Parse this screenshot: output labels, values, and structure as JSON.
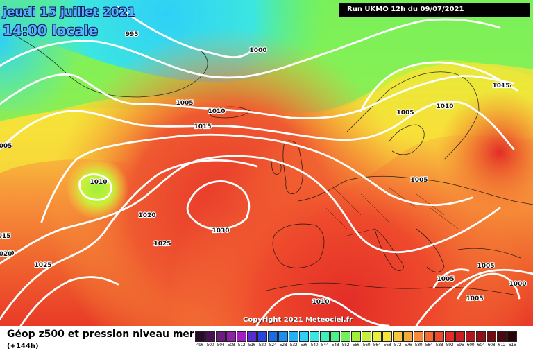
{
  "header": {
    "date_line": "jeudi 15 juillet 2021",
    "time_line": "14:00 locale",
    "run_info": "Run UKMO 12h du 09/07/2021"
  },
  "copyright": "Copyright 2021 Meteociel.fr",
  "footer": {
    "title": "Géop z500 et pression niveau mer",
    "subtitle": "(+144h)"
  },
  "legend": {
    "values": [
      "496",
      "500",
      "504",
      "508",
      "512",
      "516",
      "520",
      "524",
      "528",
      "532",
      "536",
      "540",
      "544",
      "548",
      "552",
      "556",
      "560",
      "564",
      "568",
      "572",
      "576",
      "580",
      "584",
      "588",
      "592",
      "596",
      "600",
      "604",
      "608",
      "612",
      "616"
    ],
    "colors": [
      "#2a0a2a",
      "#4b0f55",
      "#6e1a80",
      "#8f21a8",
      "#a51cc7",
      "#5a2bd1",
      "#2a43e0",
      "#1c6ae6",
      "#1e8df0",
      "#24b0f7",
      "#2fd0f7",
      "#3ce6e0",
      "#3ff0b8",
      "#4ff08a",
      "#73f05a",
      "#9ef03a",
      "#c8f03a",
      "#e8f03a",
      "#f7e43a",
      "#f7c93a",
      "#f7a83a",
      "#f78a3a",
      "#f46a32",
      "#ee4a2c",
      "#e32d27",
      "#cc1e22",
      "#b0161d",
      "#8f1018",
      "#700c14",
      "#4c0810",
      "#2a040a"
    ]
  },
  "isobars": [
    {
      "label": "995"
    },
    {
      "label": "1000"
    },
    {
      "label": "1005"
    },
    {
      "label": "1010"
    },
    {
      "label": "1015"
    },
    {
      "label": "1005"
    },
    {
      "label": "1010"
    },
    {
      "label": "1010"
    },
    {
      "label": "1015"
    },
    {
      "label": "1005"
    },
    {
      "label": "1015"
    },
    {
      "label": "1020"
    },
    {
      "label": "1030"
    },
    {
      "label": "1025"
    },
    {
      "label": "1020"
    },
    {
      "label": "1025"
    },
    {
      "label": "005"
    },
    {
      "label": "015"
    },
    {
      "label": "020"
    },
    {
      "label": "1005"
    },
    {
      "label": "1005"
    },
    {
      "label": "1000"
    },
    {
      "label": "1005"
    },
    {
      "label": "1010"
    }
  ]
}
